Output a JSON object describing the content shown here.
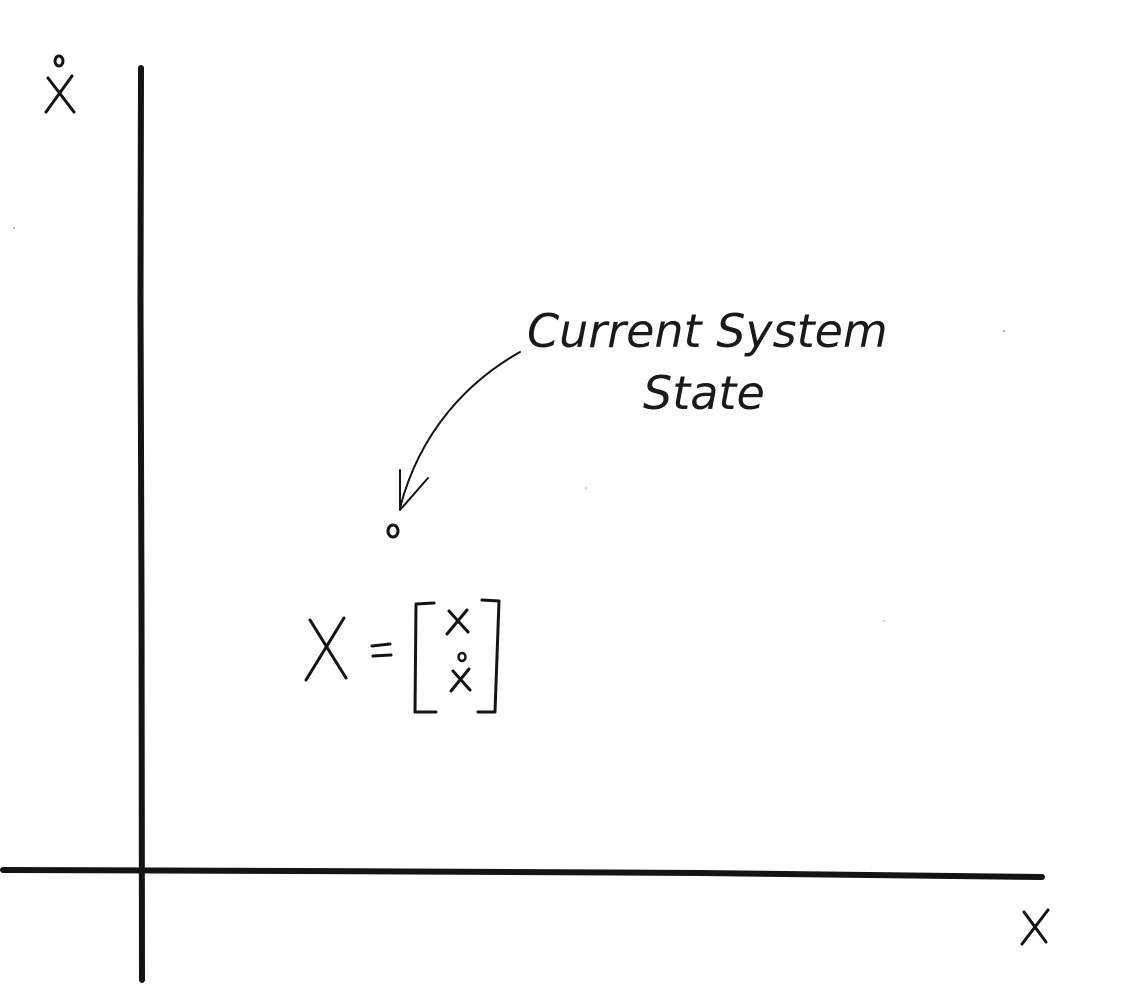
{
  "diagram": {
    "x_axis_label": "x",
    "y_axis_label": "ẋ",
    "annotation": {
      "line1": "Current System",
      "line2": "State"
    },
    "equation": {
      "lhs": "X =",
      "vector_top": "x",
      "vector_bottom": "ẋ"
    },
    "ink_color": "#141414",
    "background_color": "#ffffff"
  }
}
